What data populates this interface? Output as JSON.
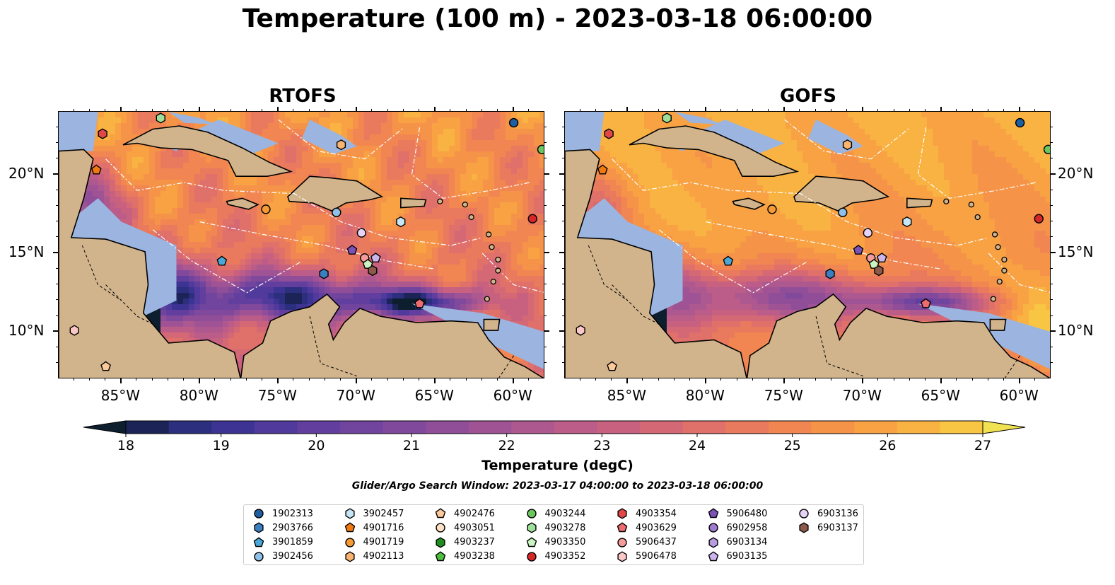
{
  "title": "Temperature (100 m) - 2023-03-18 06:00:00",
  "panels": [
    {
      "id": "rtofs",
      "title": "RTOFS"
    },
    {
      "id": "gofs",
      "title": "GOFS"
    }
  ],
  "map_extent": {
    "lon": [
      -89,
      -58
    ],
    "lat": [
      7,
      24
    ]
  },
  "lon_ticks": [
    "85°W",
    "80°W",
    "75°W",
    "70°W",
    "65°W",
    "60°W"
  ],
  "lon_tick_values": [
    -85,
    -80,
    -75,
    -70,
    -65,
    -60
  ],
  "lat_ticks": [
    "20°N",
    "15°N",
    "10°N"
  ],
  "lat_tick_values": [
    20,
    15,
    10
  ],
  "colorbar": {
    "title": "Temperature (degC)",
    "range": [
      18,
      27
    ],
    "extend": "both",
    "tick_labels": [
      "18",
      "19",
      "20",
      "21",
      "22",
      "23",
      "24",
      "25",
      "26",
      "27"
    ],
    "colormap": "thermal",
    "colors": [
      "#0d1f2e",
      "#1c2357",
      "#2b2f7e",
      "#3c3392",
      "#503a9c",
      "#623f9e",
      "#71449e",
      "#80499c",
      "#904e99",
      "#a05394",
      "#ad588f",
      "#bb5d88",
      "#c8617f",
      "#d56875",
      "#e0706a",
      "#e97a5d",
      "#f18652",
      "#f59448",
      "#f8a244",
      "#f9b342",
      "#f8c642",
      "#f0e250"
    ]
  },
  "search_window": "Glider/Argo Search Window: 2023-03-17 04:00:00 to 2023-03-18 06:00:00",
  "colors": {
    "land": "#d2b48c",
    "shallow_water": "#9bb5e0",
    "deep_dark": "#0d1f2e"
  },
  "legend": [
    {
      "id": "1902313",
      "marker": "circle",
      "color": "#1f5f9f"
    },
    {
      "id": "2903766",
      "marker": "hexagon",
      "color": "#3a7fc0"
    },
    {
      "id": "3901859",
      "marker": "pentagon",
      "color": "#4aa8d8"
    },
    {
      "id": "3902456",
      "marker": "circle",
      "color": "#8fc0e8"
    },
    {
      "id": "3902457",
      "marker": "hexagon",
      "color": "#c6e6f5"
    },
    {
      "id": "4901716",
      "marker": "pentagon",
      "color": "#f07a10"
    },
    {
      "id": "4901719",
      "marker": "circle",
      "color": "#f59a35"
    },
    {
      "id": "4902113",
      "marker": "hexagon",
      "color": "#f9b470"
    },
    {
      "id": "4902476",
      "marker": "pentagon",
      "color": "#fbc99a"
    },
    {
      "id": "4903051",
      "marker": "circle",
      "color": "#fde0c5"
    },
    {
      "id": "4903237",
      "marker": "hexagon",
      "color": "#1e8f1e"
    },
    {
      "id": "4903238",
      "marker": "pentagon",
      "color": "#4cbf3c"
    },
    {
      "id": "4903244",
      "marker": "circle",
      "color": "#6cc65e"
    },
    {
      "id": "4903278",
      "marker": "hexagon",
      "color": "#9ee09a"
    },
    {
      "id": "4903350",
      "marker": "pentagon",
      "color": "#c9f5c1"
    },
    {
      "id": "4903352",
      "marker": "circle",
      "color": "#d62728"
    },
    {
      "id": "4903354",
      "marker": "hexagon",
      "color": "#e04848"
    },
    {
      "id": "4903629",
      "marker": "pentagon",
      "color": "#ee6b70"
    },
    {
      "id": "5906437",
      "marker": "circle",
      "color": "#f59b9b"
    },
    {
      "id": "5906478",
      "marker": "hexagon",
      "color": "#fbc7c7"
    },
    {
      "id": "5906480",
      "marker": "pentagon",
      "color": "#7b52b8"
    },
    {
      "id": "6902958",
      "marker": "circle",
      "color": "#9e7ad2"
    },
    {
      "id": "6903134",
      "marker": "hexagon",
      "color": "#b79ce0"
    },
    {
      "id": "6903135",
      "marker": "pentagon",
      "color": "#cdb5eb"
    },
    {
      "id": "6903136",
      "marker": "circle",
      "color": "#e6d3f5"
    },
    {
      "id": "6903137",
      "marker": "hexagon",
      "color": "#8c5a4a"
    }
  ],
  "markers": [
    {
      "id": "1902313",
      "lon": -60.0,
      "lat": 23.3
    },
    {
      "id": "4903244",
      "lon": -58.2,
      "lat": 21.6
    },
    {
      "id": "4903278",
      "lon": -82.5,
      "lat": 23.6
    },
    {
      "id": "4903354",
      "lon": -86.2,
      "lat": 22.6
    },
    {
      "id": "4901716",
      "lon": -86.6,
      "lat": 20.3
    },
    {
      "id": "4902113",
      "lon": -71.0,
      "lat": 21.9
    },
    {
      "id": "4901719",
      "lon": -75.8,
      "lat": 17.8
    },
    {
      "id": "3902456",
      "lon": -71.3,
      "lat": 17.6
    },
    {
      "id": "3902457",
      "lon": -67.2,
      "lat": 17.0
    },
    {
      "id": "4903352",
      "lon": -58.8,
      "lat": 17.2
    },
    {
      "id": "6903136",
      "lon": -69.7,
      "lat": 16.3
    },
    {
      "id": "5906480",
      "lon": -70.3,
      "lat": 15.2
    },
    {
      "id": "5906437",
      "lon": -69.5,
      "lat": 14.7
    },
    {
      "id": "6903135",
      "lon": -68.8,
      "lat": 14.7
    },
    {
      "id": "4903350",
      "lon": -69.3,
      "lat": 14.3
    },
    {
      "id": "6903137",
      "lon": -69.0,
      "lat": 13.9
    },
    {
      "id": "2903766",
      "lon": -72.1,
      "lat": 13.7
    },
    {
      "id": "3901859",
      "lon": -78.6,
      "lat": 14.5
    },
    {
      "id": "4903629",
      "lon": -66.0,
      "lat": 11.8
    },
    {
      "id": "5906478",
      "lon": -88.0,
      "lat": 10.1
    },
    {
      "id": "4902476",
      "lon": -86.0,
      "lat": 7.8
    }
  ]
}
